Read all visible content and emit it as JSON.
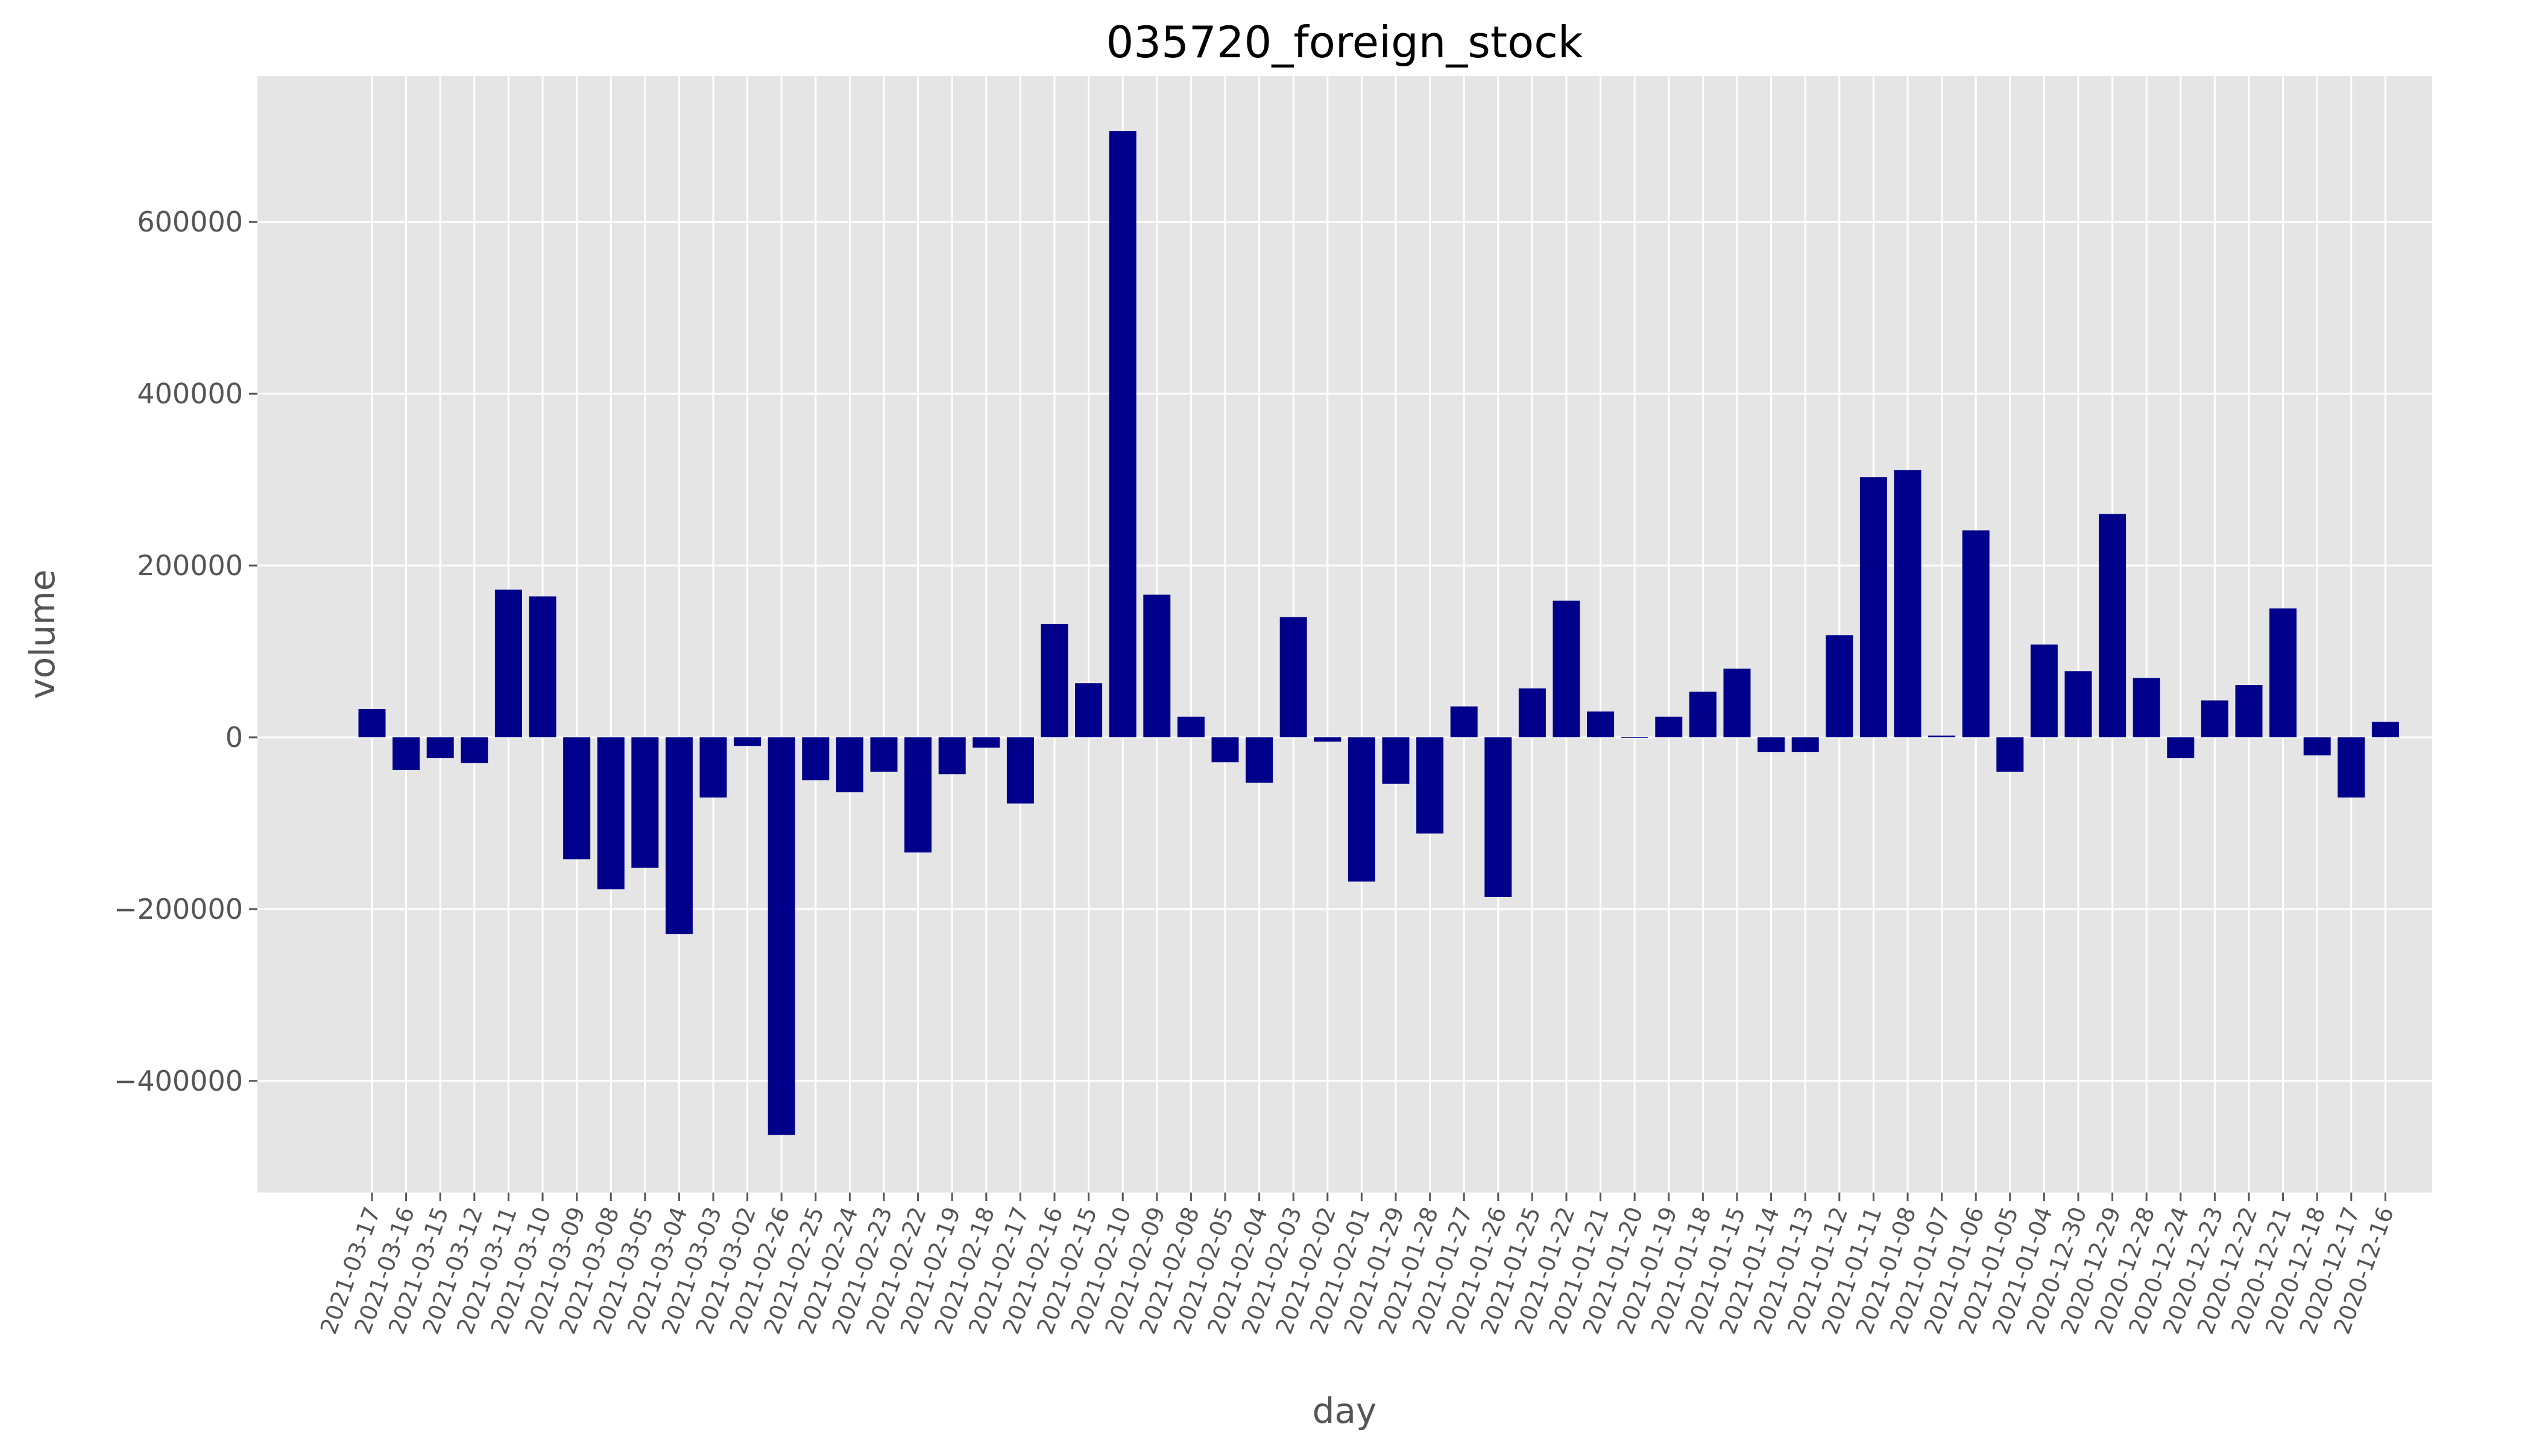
{
  "chart_data": {
    "type": "bar",
    "title": "035720_foreign_stock",
    "xlabel": "day",
    "ylabel": "volume",
    "ylim": [
      -530000,
      770000
    ],
    "yticks": [
      -400000,
      -200000,
      0,
      200000,
      400000,
      600000
    ],
    "ytick_labels": [
      "−400000",
      "−200000",
      "0",
      "200000",
      "400000",
      "600000"
    ],
    "grid": true,
    "bar_color": "#00008b",
    "background_color": "#e5e5e5",
    "grid_color": "#ffffff",
    "categories": [
      "2021-03-17",
      "2021-03-16",
      "2021-03-15",
      "2021-03-12",
      "2021-03-11",
      "2021-03-10",
      "2021-03-09",
      "2021-03-08",
      "2021-03-05",
      "2021-03-04",
      "2021-03-03",
      "2021-03-02",
      "2021-02-26",
      "2021-02-25",
      "2021-02-24",
      "2021-02-23",
      "2021-02-22",
      "2021-02-19",
      "2021-02-18",
      "2021-02-17",
      "2021-02-16",
      "2021-02-15",
      "2021-02-10",
      "2021-02-09",
      "2021-02-08",
      "2021-02-05",
      "2021-02-04",
      "2021-02-03",
      "2021-02-02",
      "2021-02-01",
      "2021-01-29",
      "2021-01-28",
      "2021-01-27",
      "2021-01-26",
      "2021-01-25",
      "2021-01-22",
      "2021-01-21",
      "2021-01-20",
      "2021-01-19",
      "2021-01-18",
      "2021-01-15",
      "2021-01-14",
      "2021-01-13",
      "2021-01-12",
      "2021-01-11",
      "2021-01-08",
      "2021-01-07",
      "2021-01-06",
      "2021-01-05",
      "2021-01-04",
      "2020-12-30",
      "2020-12-29",
      "2020-12-28",
      "2020-12-24",
      "2020-12-23",
      "2020-12-22",
      "2020-12-21",
      "2020-12-18",
      "2020-12-17",
      "2020-12-16"
    ],
    "values": [
      33000,
      -38000,
      -24000,
      -30000,
      172000,
      164000,
      -142000,
      -177000,
      -152000,
      -229000,
      -70000,
      -10000,
      -463000,
      -50000,
      -64000,
      -40000,
      -134000,
      -43000,
      -12000,
      -77000,
      132000,
      63000,
      706000,
      166000,
      24000,
      -29000,
      -53000,
      140000,
      -5000,
      -168000,
      -54000,
      -112000,
      36000,
      -186000,
      57000,
      159000,
      30000,
      0,
      24000,
      53000,
      80000,
      -17000,
      -17000,
      119000,
      303000,
      311000,
      2000,
      241000,
      -40000,
      108000,
      77000,
      260000,
      69000,
      -24000,
      43000,
      61000,
      150000,
      -21000,
      -70000,
      18000
    ]
  }
}
